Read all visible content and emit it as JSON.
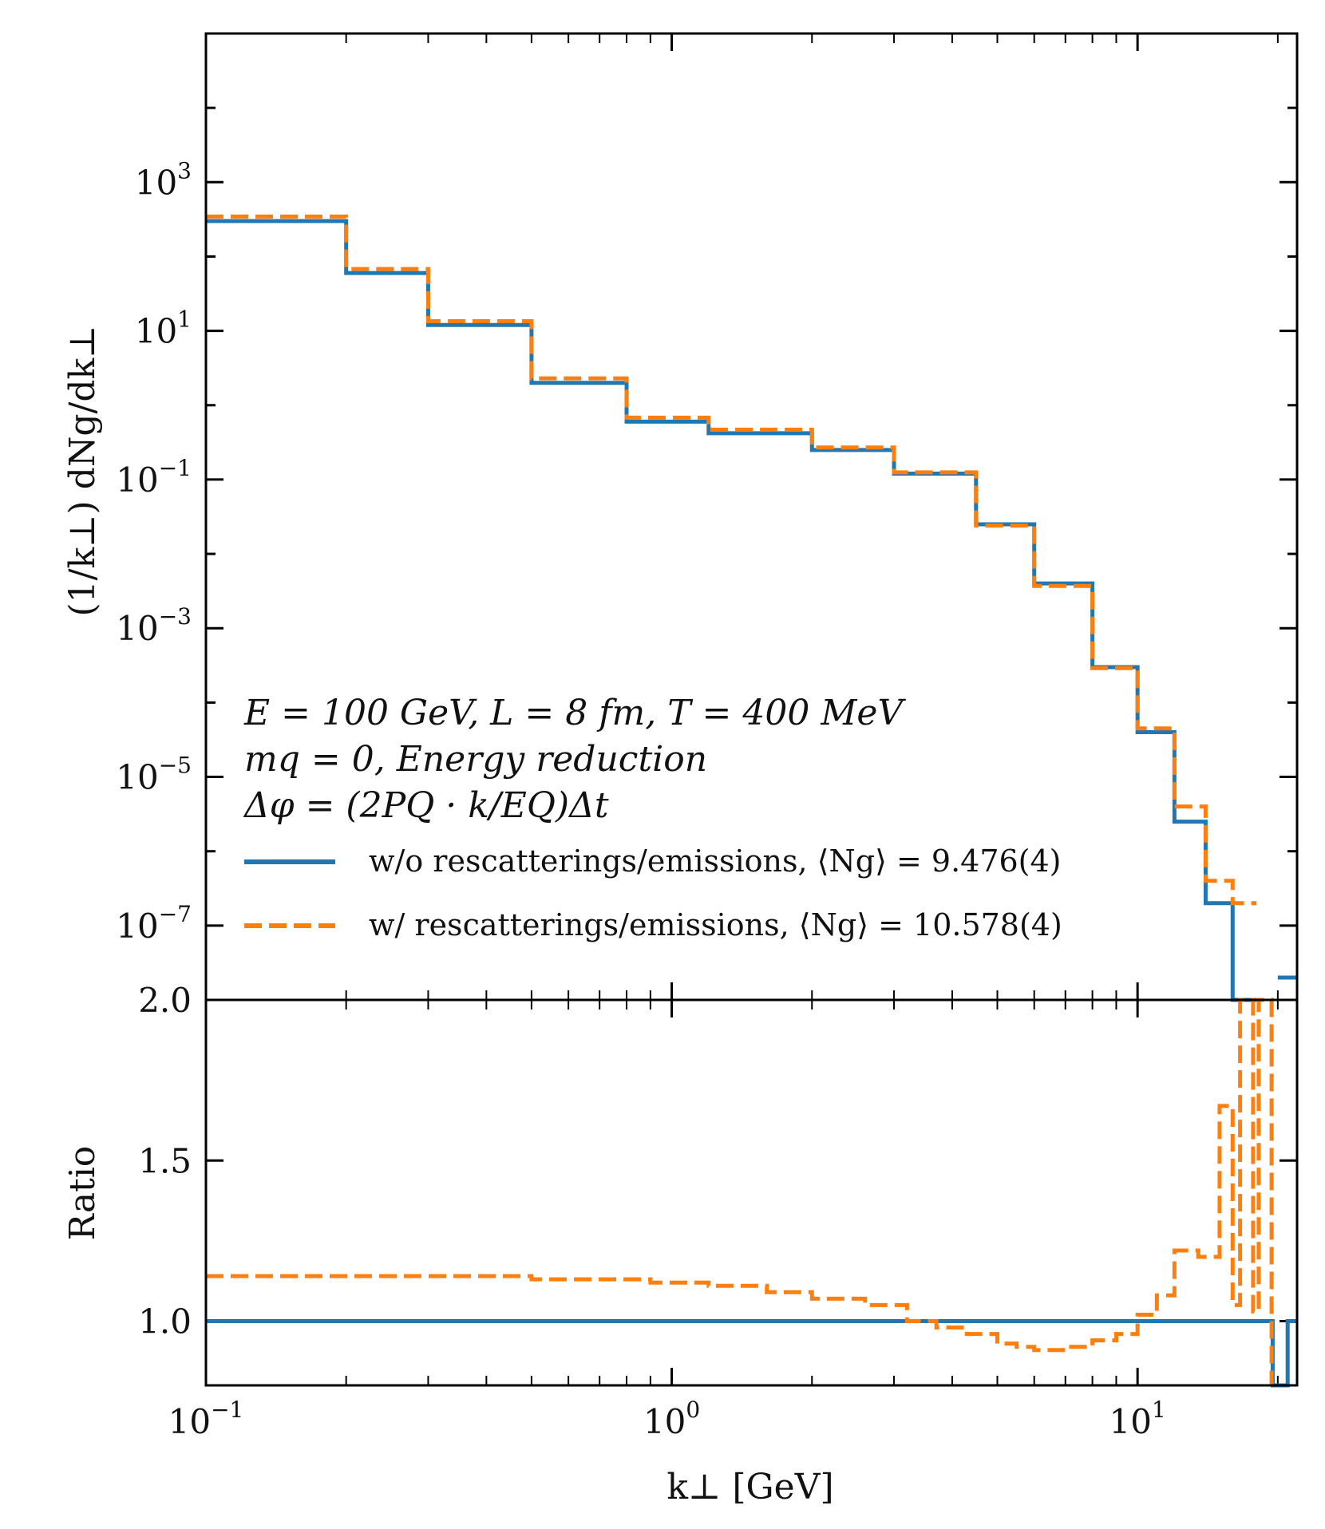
{
  "chart_data": [
    {
      "type": "line",
      "panel": "top",
      "step": true,
      "x_scale": "log",
      "y_scale": "log",
      "xlim": [
        0.1,
        22
      ],
      "ylim": [
        1e-08,
        100000.0
      ],
      "xlabel": "",
      "ylabel": "(1/k⊥) dNg/dk⊥",
      "ytick_labels": [
        {
          "base": "10",
          "exp": "3",
          "value": 1000
        },
        {
          "base": "10",
          "exp": "1",
          "value": 10
        },
        {
          "base": "10",
          "exp": "−1",
          "value": 0.1
        },
        {
          "base": "10",
          "exp": "−3",
          "value": 0.001
        },
        {
          "base": "10",
          "exp": "−5",
          "value": 1e-05
        },
        {
          "base": "10",
          "exp": "−7",
          "value": 1e-07
        }
      ],
      "annotations": [
        "E = 100 GeV,   L = 8 fm,   T = 400 MeV",
        "mq = 0,   Energy reduction",
        "Δφ = (2PQ · k/EQ)Δt"
      ],
      "legend_position": "lower-left",
      "x": [
        0.1,
        0.2,
        0.3,
        0.5,
        0.8,
        1.2,
        2.0,
        3.0,
        4.5,
        6.0,
        8.0,
        10.0,
        12.0,
        14.0,
        16.0,
        18.0,
        20.0,
        22.0
      ],
      "series": [
        {
          "name": "w/o rescatterings/emissions,  ⟨Ng⟩ = 9.476(4)",
          "color": "#1f77b4",
          "style": "solid",
          "values": [
            300,
            60,
            12,
            2.0,
            0.6,
            0.42,
            0.25,
            0.12,
            0.025,
            0.004,
            0.0003,
            4e-05,
            2.5e-06,
            2e-07,
            8e-09,
            null,
            2e-08,
            2e-08
          ]
        },
        {
          "name": "w/  rescatterings/emissions,  ⟨Ng⟩ = 10.578(4)",
          "color": "#ff7f0e",
          "style": "dashed",
          "values": [
            345,
            68,
            13.5,
            2.3,
            0.68,
            0.47,
            0.27,
            0.125,
            0.024,
            0.0037,
            0.00029,
            4.5e-05,
            4e-06,
            4e-07,
            2e-07,
            null,
            null,
            null
          ]
        }
      ]
    },
    {
      "type": "line",
      "panel": "bottom",
      "step": true,
      "x_scale": "log",
      "xlim": [
        0.1,
        22
      ],
      "ylim": [
        0.8,
        2.0
      ],
      "xlabel": "k⊥ [GeV]",
      "ylabel": "Ratio",
      "ytick_labels": [
        "2.0",
        "1.5",
        "1.0"
      ],
      "xtick_labels": [
        {
          "base": "10",
          "exp": "−1",
          "value": 0.1
        },
        {
          "base": "10",
          "exp": "0",
          "value": 1
        },
        {
          "base": "10",
          "exp": "1",
          "value": 10
        }
      ],
      "series": [
        {
          "name": "w/o rescatterings/emissions",
          "color": "#1f77b4",
          "style": "solid",
          "x": [
            0.1,
            19.5,
            19.5,
            21,
            21,
            22
          ],
          "values": [
            1.0,
            1.0,
            0.8,
            0.8,
            1.0,
            1.0
          ]
        },
        {
          "name": "w/ rescatterings/emissions",
          "color": "#ff7f0e",
          "style": "dashed",
          "x": [
            0.1,
            0.2,
            0.3,
            0.5,
            0.7,
            0.8,
            0.9,
            1.2,
            1.6,
            2.0,
            2.6,
            3.2,
            3.7,
            4.3,
            5.0,
            5.5,
            6.0,
            7.0,
            8.0,
            9.0,
            10.0,
            11.0,
            12.0,
            13.5,
            15.0,
            16.0,
            16.6,
            17.7,
            18.2,
            19.4
          ],
          "values": [
            1.14,
            1.14,
            1.14,
            1.13,
            1.13,
            1.13,
            1.12,
            1.11,
            1.09,
            1.07,
            1.05,
            1.0,
            0.98,
            0.96,
            0.93,
            0.92,
            0.91,
            0.92,
            0.94,
            0.96,
            1.02,
            1.08,
            1.22,
            1.2,
            1.67,
            1.05,
            2.02,
            1.03,
            2.0,
            0.8
          ]
        }
      ]
    }
  ]
}
